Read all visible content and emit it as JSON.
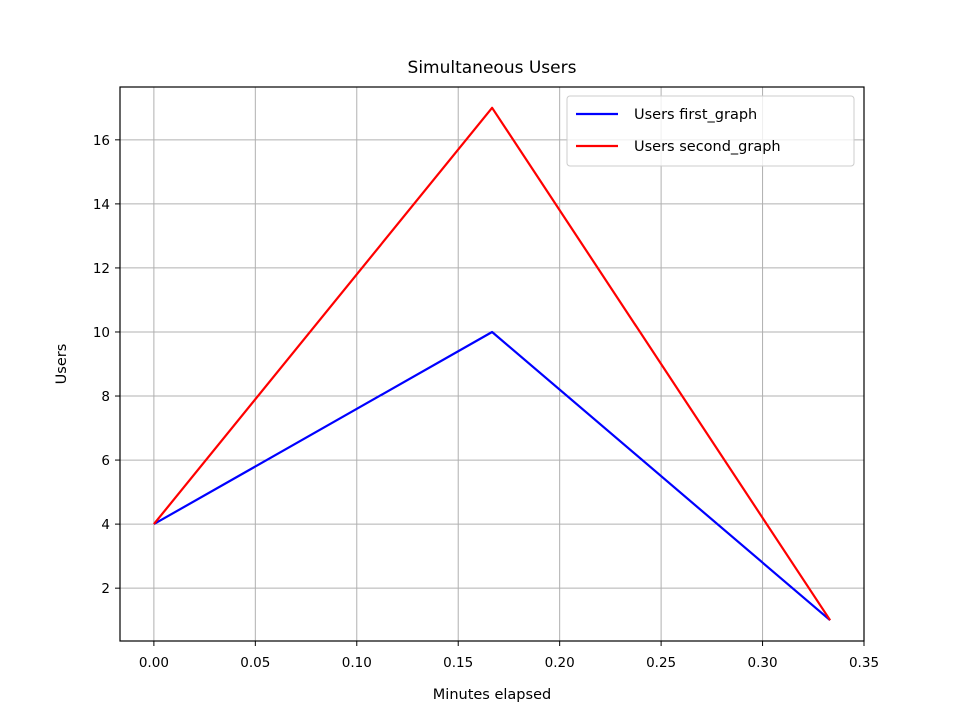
{
  "chart_data": {
    "type": "line",
    "title": "Simultaneous Users",
    "xlabel": "Minutes elapsed",
    "ylabel": "Users",
    "xlim": [
      -0.0167,
      0.35
    ],
    "ylim": [
      0.35,
      17.65
    ],
    "xticks": [
      0.0,
      0.05,
      0.1,
      0.15,
      0.2,
      0.25,
      0.3,
      0.35
    ],
    "xtick_labels": [
      "0.00",
      "0.05",
      "0.10",
      "0.15",
      "0.20",
      "0.25",
      "0.30",
      "0.35"
    ],
    "yticks": [
      2,
      4,
      6,
      8,
      10,
      12,
      14,
      16
    ],
    "ytick_labels": [
      "2",
      "4",
      "6",
      "8",
      "10",
      "12",
      "14",
      "16"
    ],
    "grid": true,
    "legend_position": "top-right",
    "series": [
      {
        "name": "Users first_graph",
        "color": "#0000ff",
        "x": [
          0.0,
          0.1667,
          0.3333
        ],
        "y": [
          4,
          10,
          1
        ]
      },
      {
        "name": "Users second_graph",
        "color": "#ff0000",
        "x": [
          0.0,
          0.1667,
          0.3333
        ],
        "y": [
          4,
          17,
          1
        ]
      }
    ]
  }
}
